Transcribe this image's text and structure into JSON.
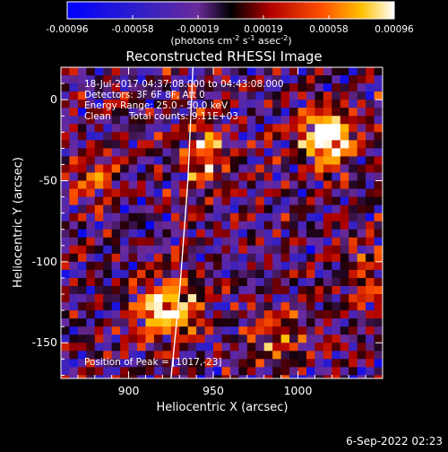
{
  "title": "Reconstructed RHESSI Image",
  "colorbar": {
    "ticks": [
      "-0.00096",
      "-0.00058",
      "-0.00019",
      "0.00019",
      "0.00058",
      "0.00096"
    ],
    "unit_label_parts": {
      "pre": "(photons cm",
      "sup1": "-2",
      "mid1": " s",
      "sup2": "-1",
      "mid2": " asec",
      "sup3": "-2",
      "post": ")"
    },
    "range": [
      -0.00096,
      0.00096
    ]
  },
  "annotations": {
    "time_range": "18-Jul-2017 04:37:08.000 to 04:43:08.000",
    "detectors": "Detectors: 3F 6F 8F, Att 0",
    "energy": "Energy Range: 25.0 - 50.0 keV",
    "method": "Clean",
    "counts": "Total counts: 9.11E+03",
    "peak": "Position of Peak = [1017,-23]"
  },
  "footer_date": "6-Sep-2022 02:23",
  "colors": {
    "background": "#000000",
    "limb": "#ffffff"
  },
  "chart_data": {
    "type": "heatmap",
    "title": "Reconstructed RHESSI Image",
    "xlabel": "Heliocentric X (arcsec)",
    "ylabel": "Heliocentric Y (arcsec)",
    "xlim": [
      860,
      1050
    ],
    "ylim": [
      -172,
      20
    ],
    "xticks": [
      900,
      950,
      1000
    ],
    "yticks": [
      0,
      -50,
      -100,
      -150
    ],
    "colorscale_range": [
      -0.00096,
      0.00096
    ],
    "peak_position": [
      1017,
      -23
    ],
    "bright_sources": [
      {
        "x": 1017,
        "y": -23,
        "level": 1.0,
        "sx": 11,
        "sy": 13
      },
      {
        "x": 922,
        "y": -130,
        "level": 0.85,
        "sx": 13,
        "sy": 14
      },
      {
        "x": 945,
        "y": -35,
        "level": 0.6,
        "sx": 8,
        "sy": 16
      },
      {
        "x": 985,
        "y": -145,
        "level": 0.5,
        "sx": 12,
        "sy": 10
      },
      {
        "x": 880,
        "y": -50,
        "level": 0.45,
        "sx": 10,
        "sy": 10
      },
      {
        "x": 1040,
        "y": -110,
        "level": 0.4,
        "sx": 8,
        "sy": 14
      }
    ],
    "limb": {
      "points": [
        [
          938,
          20
        ],
        [
          935,
          -50
        ],
        [
          930,
          -120
        ],
        [
          925,
          -172
        ]
      ]
    }
  }
}
